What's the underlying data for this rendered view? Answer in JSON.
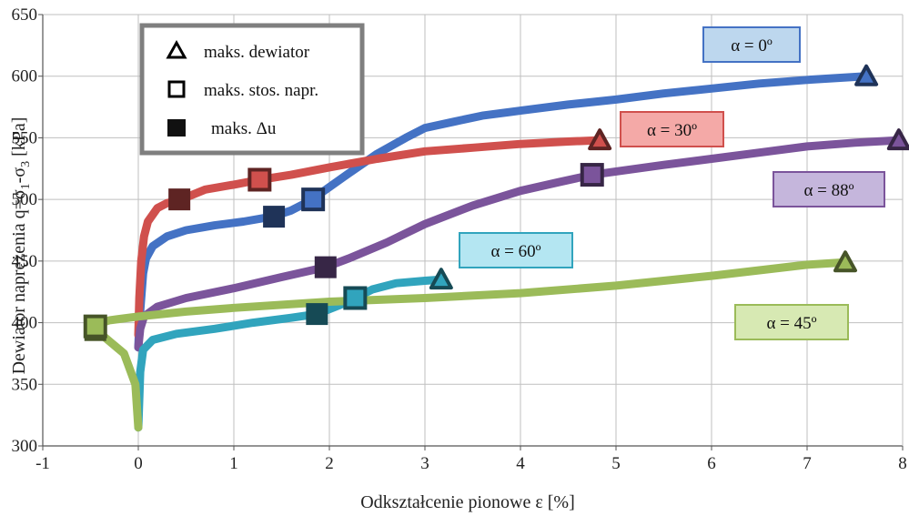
{
  "chart_data": {
    "type": "line",
    "xlabel": "Odkształcenie pionowe ε [%]",
    "ylabel_parts": [
      "Dewiator naprężenia  q=σ",
      "1",
      "-σ",
      "3",
      " [kPa]"
    ],
    "xlim": [
      -1,
      8
    ],
    "ylim": [
      300,
      650
    ],
    "x_ticks": [
      -1,
      0,
      1,
      2,
      3,
      4,
      5,
      6,
      7,
      8
    ],
    "y_ticks": [
      300,
      350,
      400,
      450,
      500,
      550,
      600,
      650
    ],
    "grid": true,
    "legend": {
      "placement": "top-left",
      "items": [
        {
          "marker": "triangle",
          "label": "maks. dewiator"
        },
        {
          "marker": "open-square",
          "label": "maks. stos. napr."
        },
        {
          "marker": "filled-square",
          "label": "maks. Δu"
        }
      ]
    },
    "series": [
      {
        "name": "α = 0º",
        "color": "#4472C4",
        "label_bg": "#bdd7ee",
        "points": [
          [
            0,
            380
          ],
          [
            0.01,
            400
          ],
          [
            0.03,
            420
          ],
          [
            0.05,
            440
          ],
          [
            0.08,
            452
          ],
          [
            0.15,
            462
          ],
          [
            0.3,
            470
          ],
          [
            0.5,
            475
          ],
          [
            0.8,
            479
          ],
          [
            1.1,
            482
          ],
          [
            1.4,
            486
          ],
          [
            1.6,
            491
          ],
          [
            1.8,
            499
          ],
          [
            2.0,
            510
          ],
          [
            2.2,
            521
          ],
          [
            2.5,
            537
          ],
          [
            2.8,
            550
          ],
          [
            3.0,
            558
          ],
          [
            3.3,
            563
          ],
          [
            3.6,
            568
          ],
          [
            4.0,
            572
          ],
          [
            4.5,
            577
          ],
          [
            5.0,
            581
          ],
          [
            5.5,
            586
          ],
          [
            6.0,
            590
          ],
          [
            6.5,
            594
          ],
          [
            7.0,
            597
          ],
          [
            7.62,
            600
          ]
        ],
        "max_deviator": [
          7.62,
          600
        ],
        "max_stress_ratio": [
          1.83,
          500
        ],
        "max_pore_pressure": [
          1.42,
          486
        ]
      },
      {
        "name": "α = 30º",
        "color": "#D0504D",
        "label_bg": "#f4a9a7",
        "points": [
          [
            0,
            390
          ],
          [
            0.01,
            420
          ],
          [
            0.03,
            450
          ],
          [
            0.06,
            470
          ],
          [
            0.1,
            482
          ],
          [
            0.2,
            493
          ],
          [
            0.3,
            497
          ],
          [
            0.45,
            500
          ],
          [
            0.7,
            508
          ],
          [
            1.0,
            512
          ],
          [
            1.27,
            516
          ],
          [
            1.6,
            520
          ],
          [
            2.0,
            526
          ],
          [
            2.5,
            533
          ],
          [
            3.0,
            539
          ],
          [
            3.5,
            542
          ],
          [
            4.0,
            545
          ],
          [
            4.5,
            547
          ],
          [
            4.83,
            548
          ]
        ],
        "max_deviator": [
          4.83,
          548
        ],
        "max_stress_ratio": [
          1.27,
          516
        ],
        "max_pore_pressure": [
          0.43,
          500
        ]
      },
      {
        "name": "α = 88º",
        "color": "#7B549B",
        "label_bg": "#c5b6dc",
        "points": [
          [
            0,
            380
          ],
          [
            0.02,
            395
          ],
          [
            0.06,
            405
          ],
          [
            0.2,
            413
          ],
          [
            0.5,
            420
          ],
          [
            1.0,
            428
          ],
          [
            1.5,
            437
          ],
          [
            1.96,
            445
          ],
          [
            2.2,
            452
          ],
          [
            2.6,
            465
          ],
          [
            3.0,
            480
          ],
          [
            3.5,
            495
          ],
          [
            4.0,
            507
          ],
          [
            4.4,
            514
          ],
          [
            4.75,
            520
          ],
          [
            5.5,
            528
          ],
          [
            6.0,
            533
          ],
          [
            6.5,
            538
          ],
          [
            7.0,
            543
          ],
          [
            7.5,
            546
          ],
          [
            7.96,
            548
          ]
        ],
        "max_deviator": [
          7.96,
          548
        ],
        "max_stress_ratio": [
          4.75,
          520
        ],
        "max_pore_pressure": [
          1.96,
          445
        ]
      },
      {
        "name": "α = 60º",
        "color": "#31A4BD",
        "label_bg": "#b4e6f2",
        "points": [
          [
            0.0,
            315
          ],
          [
            0.02,
            360
          ],
          [
            0.05,
            378
          ],
          [
            0.15,
            386
          ],
          [
            0.4,
            391
          ],
          [
            0.8,
            395
          ],
          [
            1.2,
            400
          ],
          [
            1.6,
            404
          ],
          [
            1.87,
            407
          ],
          [
            2.1,
            414
          ],
          [
            2.27,
            420
          ],
          [
            2.45,
            427
          ],
          [
            2.7,
            432
          ],
          [
            3.0,
            434
          ],
          [
            3.17,
            435
          ]
        ],
        "max_deviator": [
          3.17,
          435
        ],
        "max_stress_ratio": [
          2.27,
          420
        ],
        "max_pore_pressure": [
          1.87,
          407
        ]
      },
      {
        "name": "α = 45º",
        "color": "#9BBB59",
        "label_bg": "#d7e9b3",
        "points": [
          [
            0.0,
            315
          ],
          [
            -0.03,
            350
          ],
          [
            -0.15,
            375
          ],
          [
            -0.35,
            388
          ],
          [
            -0.5,
            397
          ],
          [
            -0.3,
            402
          ],
          [
            0.0,
            405
          ],
          [
            0.5,
            409
          ],
          [
            1.0,
            412
          ],
          [
            2.0,
            417
          ],
          [
            3.0,
            420
          ],
          [
            4.0,
            424
          ],
          [
            5.0,
            430
          ],
          [
            6.0,
            438
          ],
          [
            7.0,
            447
          ],
          [
            7.4,
            449
          ]
        ],
        "max_deviator": [
          7.4,
          449
        ],
        "max_stress_ratio": [
          -0.45,
          397
        ],
        "max_pore_pressure": [
          -0.45,
          394
        ]
      }
    ]
  }
}
